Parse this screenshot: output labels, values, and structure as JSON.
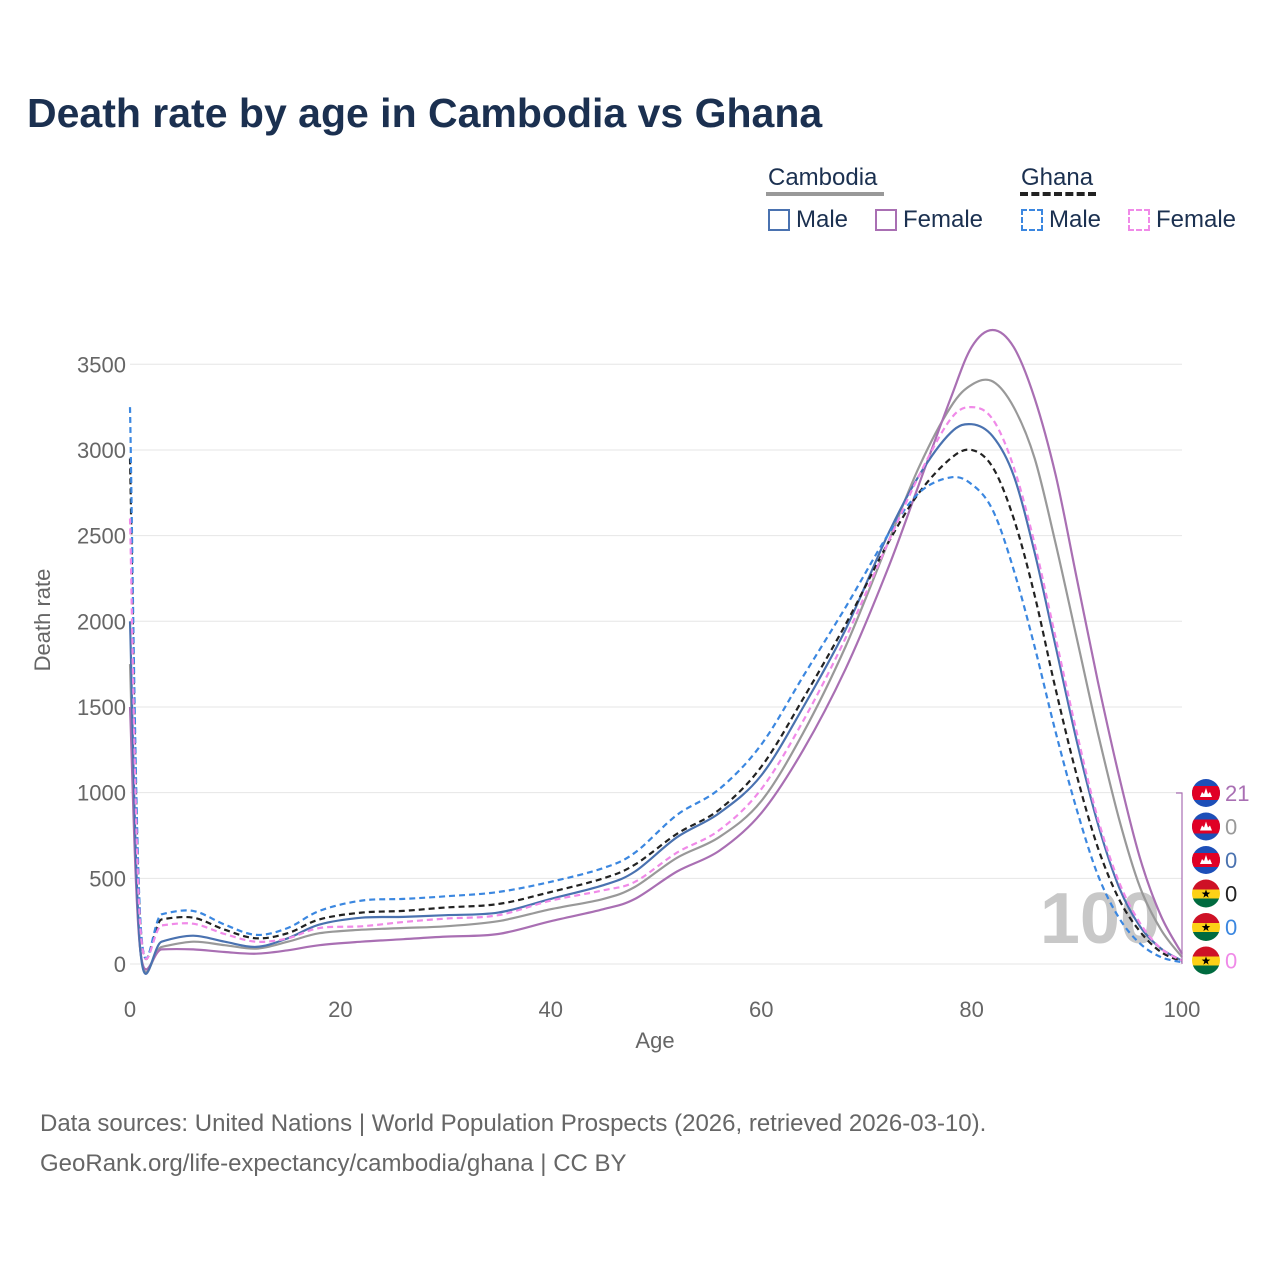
{
  "title": "Death rate by age in Cambodia vs Ghana",
  "legend": {
    "groups": [
      {
        "name": "Cambodia",
        "items": [
          {
            "label": "Male",
            "color": "#4a72b0",
            "style": "solid"
          },
          {
            "label": "Female",
            "color": "#a96fb3",
            "style": "solid"
          }
        ]
      },
      {
        "name": "Ghana",
        "items": [
          {
            "label": "Male",
            "color": "#3b87e0",
            "style": "dashed"
          },
          {
            "label": "Female",
            "color": "#f08ae8",
            "style": "dashed"
          }
        ]
      }
    ]
  },
  "chart_data": {
    "type": "line",
    "xlabel": "Age",
    "ylabel": "Death rate",
    "xlim": [
      0,
      100
    ],
    "ylim": [
      0,
      3700
    ],
    "xticks": [
      0,
      20,
      40,
      60,
      80,
      100
    ],
    "yticks": [
      0,
      500,
      1000,
      1500,
      2000,
      2500,
      3000,
      3500
    ],
    "grid": true,
    "watermark": "100",
    "series": [
      {
        "name": "Cambodia Total",
        "color": "#999999",
        "dash": false,
        "x": [
          0,
          1,
          3,
          6,
          9,
          12,
          15,
          18,
          22,
          26,
          30,
          35,
          40,
          45,
          48,
          52,
          56,
          60,
          64,
          68,
          72,
          75,
          78,
          80,
          82,
          84,
          86,
          88,
          90,
          92,
          94,
          96,
          98,
          100
        ],
        "y": [
          1750,
          70,
          100,
          130,
          110,
          90,
          130,
          180,
          200,
          210,
          220,
          250,
          320,
          380,
          450,
          620,
          740,
          950,
          1350,
          1850,
          2450,
          2900,
          3250,
          3380,
          3400,
          3250,
          2950,
          2450,
          1900,
          1350,
          850,
          450,
          200,
          40
        ]
      },
      {
        "name": "Cambodia Female",
        "color": "#a96fb3",
        "dash": false,
        "x": [
          0,
          1,
          3,
          6,
          9,
          12,
          15,
          18,
          22,
          26,
          30,
          35,
          40,
          45,
          48,
          52,
          56,
          60,
          64,
          68,
          72,
          75,
          78,
          80,
          82,
          84,
          86,
          88,
          90,
          92,
          94,
          96,
          98,
          100
        ],
        "y": [
          1500,
          70,
          85,
          85,
          70,
          60,
          80,
          110,
          130,
          145,
          160,
          175,
          250,
          320,
          380,
          540,
          660,
          880,
          1250,
          1720,
          2300,
          2800,
          3300,
          3600,
          3700,
          3600,
          3300,
          2850,
          2250,
          1650,
          1100,
          620,
          280,
          60
        ]
      },
      {
        "name": "Cambodia Male",
        "color": "#4a72b0",
        "dash": false,
        "x": [
          0,
          1,
          3,
          6,
          9,
          12,
          15,
          18,
          22,
          26,
          30,
          35,
          40,
          45,
          48,
          52,
          56,
          60,
          64,
          68,
          72,
          75,
          78,
          80,
          82,
          84,
          86,
          88,
          90,
          92,
          94,
          96,
          98,
          100
        ],
        "y": [
          2000,
          70,
          130,
          165,
          130,
          100,
          150,
          230,
          270,
          275,
          285,
          300,
          380,
          460,
          540,
          740,
          880,
          1100,
          1500,
          1950,
          2500,
          2850,
          3100,
          3150,
          3080,
          2850,
          2400,
          1850,
          1300,
          820,
          450,
          220,
          90,
          20
        ]
      },
      {
        "name": "Ghana Total",
        "color": "#222222",
        "dash": true,
        "x": [
          0,
          1,
          3,
          6,
          9,
          12,
          15,
          18,
          22,
          26,
          30,
          35,
          40,
          45,
          48,
          52,
          56,
          60,
          64,
          68,
          72,
          75,
          78,
          80,
          82,
          84,
          86,
          88,
          90,
          92,
          94,
          96,
          98,
          100
        ],
        "y": [
          2950,
          220,
          260,
          270,
          200,
          150,
          180,
          260,
          300,
          310,
          330,
          350,
          420,
          500,
          580,
          760,
          900,
          1150,
          1550,
          1980,
          2450,
          2750,
          2950,
          3000,
          2900,
          2600,
          2150,
          1600,
          1100,
          680,
          380,
          190,
          70,
          15
        ]
      },
      {
        "name": "Ghana Male",
        "color": "#3b87e0",
        "dash": true,
        "x": [
          0,
          1,
          3,
          6,
          9,
          12,
          15,
          18,
          22,
          26,
          30,
          35,
          40,
          45,
          48,
          52,
          56,
          60,
          64,
          68,
          72,
          75,
          78,
          80,
          82,
          84,
          86,
          88,
          90,
          92,
          94,
          96,
          98,
          100
        ],
        "y": [
          3250,
          240,
          290,
          310,
          230,
          170,
          210,
          310,
          370,
          380,
          395,
          420,
          480,
          560,
          650,
          870,
          1020,
          1280,
          1680,
          2080,
          2500,
          2750,
          2840,
          2800,
          2650,
          2300,
          1850,
          1350,
          900,
          520,
          270,
          120,
          40,
          10
        ]
      },
      {
        "name": "Ghana Female",
        "color": "#f08ae8",
        "dash": true,
        "x": [
          0,
          1,
          3,
          6,
          9,
          12,
          15,
          18,
          22,
          26,
          30,
          35,
          40,
          45,
          48,
          52,
          56,
          60,
          64,
          68,
          72,
          75,
          78,
          80,
          82,
          84,
          86,
          88,
          90,
          92,
          94,
          96,
          98,
          100
        ],
        "y": [
          2600,
          200,
          225,
          235,
          175,
          130,
          150,
          210,
          220,
          245,
          265,
          285,
          370,
          430,
          480,
          650,
          780,
          1020,
          1420,
          1900,
          2450,
          2850,
          3180,
          3250,
          3180,
          2900,
          2450,
          1900,
          1350,
          850,
          480,
          240,
          90,
          20
        ]
      }
    ],
    "end_labels": [
      {
        "country": "Cambodia",
        "value": "21",
        "color": "#a96fb3"
      },
      {
        "country": "Cambodia",
        "value": "0",
        "color": "#999999"
      },
      {
        "country": "Cambodia",
        "value": "0",
        "color": "#4a72b0"
      },
      {
        "country": "Ghana",
        "value": "0",
        "color": "#222222"
      },
      {
        "country": "Ghana",
        "value": "0",
        "color": "#3b87e0"
      },
      {
        "country": "Ghana",
        "value": "0",
        "color": "#f08ae8"
      }
    ]
  },
  "footer": {
    "line1": "Data sources: United Nations | World Population Prospects (2026, retrieved 2026-03-10).",
    "line2": "GeoRank.org/life-expectancy/cambodia/ghana | CC BY"
  }
}
